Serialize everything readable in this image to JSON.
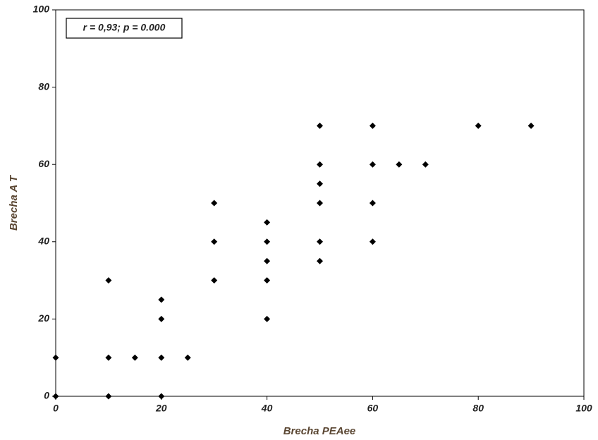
{
  "chart_data": {
    "type": "scatter",
    "annotation": "r = 0,93; p = 0.000",
    "x_label": "Brecha PEAee",
    "y_label": "Brecha A T",
    "x": [
      0,
      0,
      10,
      10,
      10,
      15,
      20,
      20,
      20,
      20,
      25,
      30,
      30,
      30,
      40,
      40,
      40,
      40,
      40,
      50,
      50,
      50,
      50,
      50,
      50,
      60,
      60,
      60,
      60,
      65,
      70,
      80,
      90
    ],
    "values": [
      10,
      0,
      30,
      10,
      0,
      10,
      25,
      20,
      10,
      0,
      10,
      50,
      40,
      30,
      45,
      40,
      35,
      30,
      20,
      70,
      60,
      55,
      50,
      40,
      35,
      70,
      60,
      50,
      40,
      60,
      60,
      70,
      70
    ],
    "color": "#000000",
    "xlim": [
      0,
      100
    ],
    "xticks": [
      0,
      20,
      40,
      60,
      80,
      100
    ],
    "ylim": [
      0,
      100
    ],
    "yticks": [
      0,
      20,
      40,
      60,
      80,
      100
    ],
    "grid": false
  }
}
